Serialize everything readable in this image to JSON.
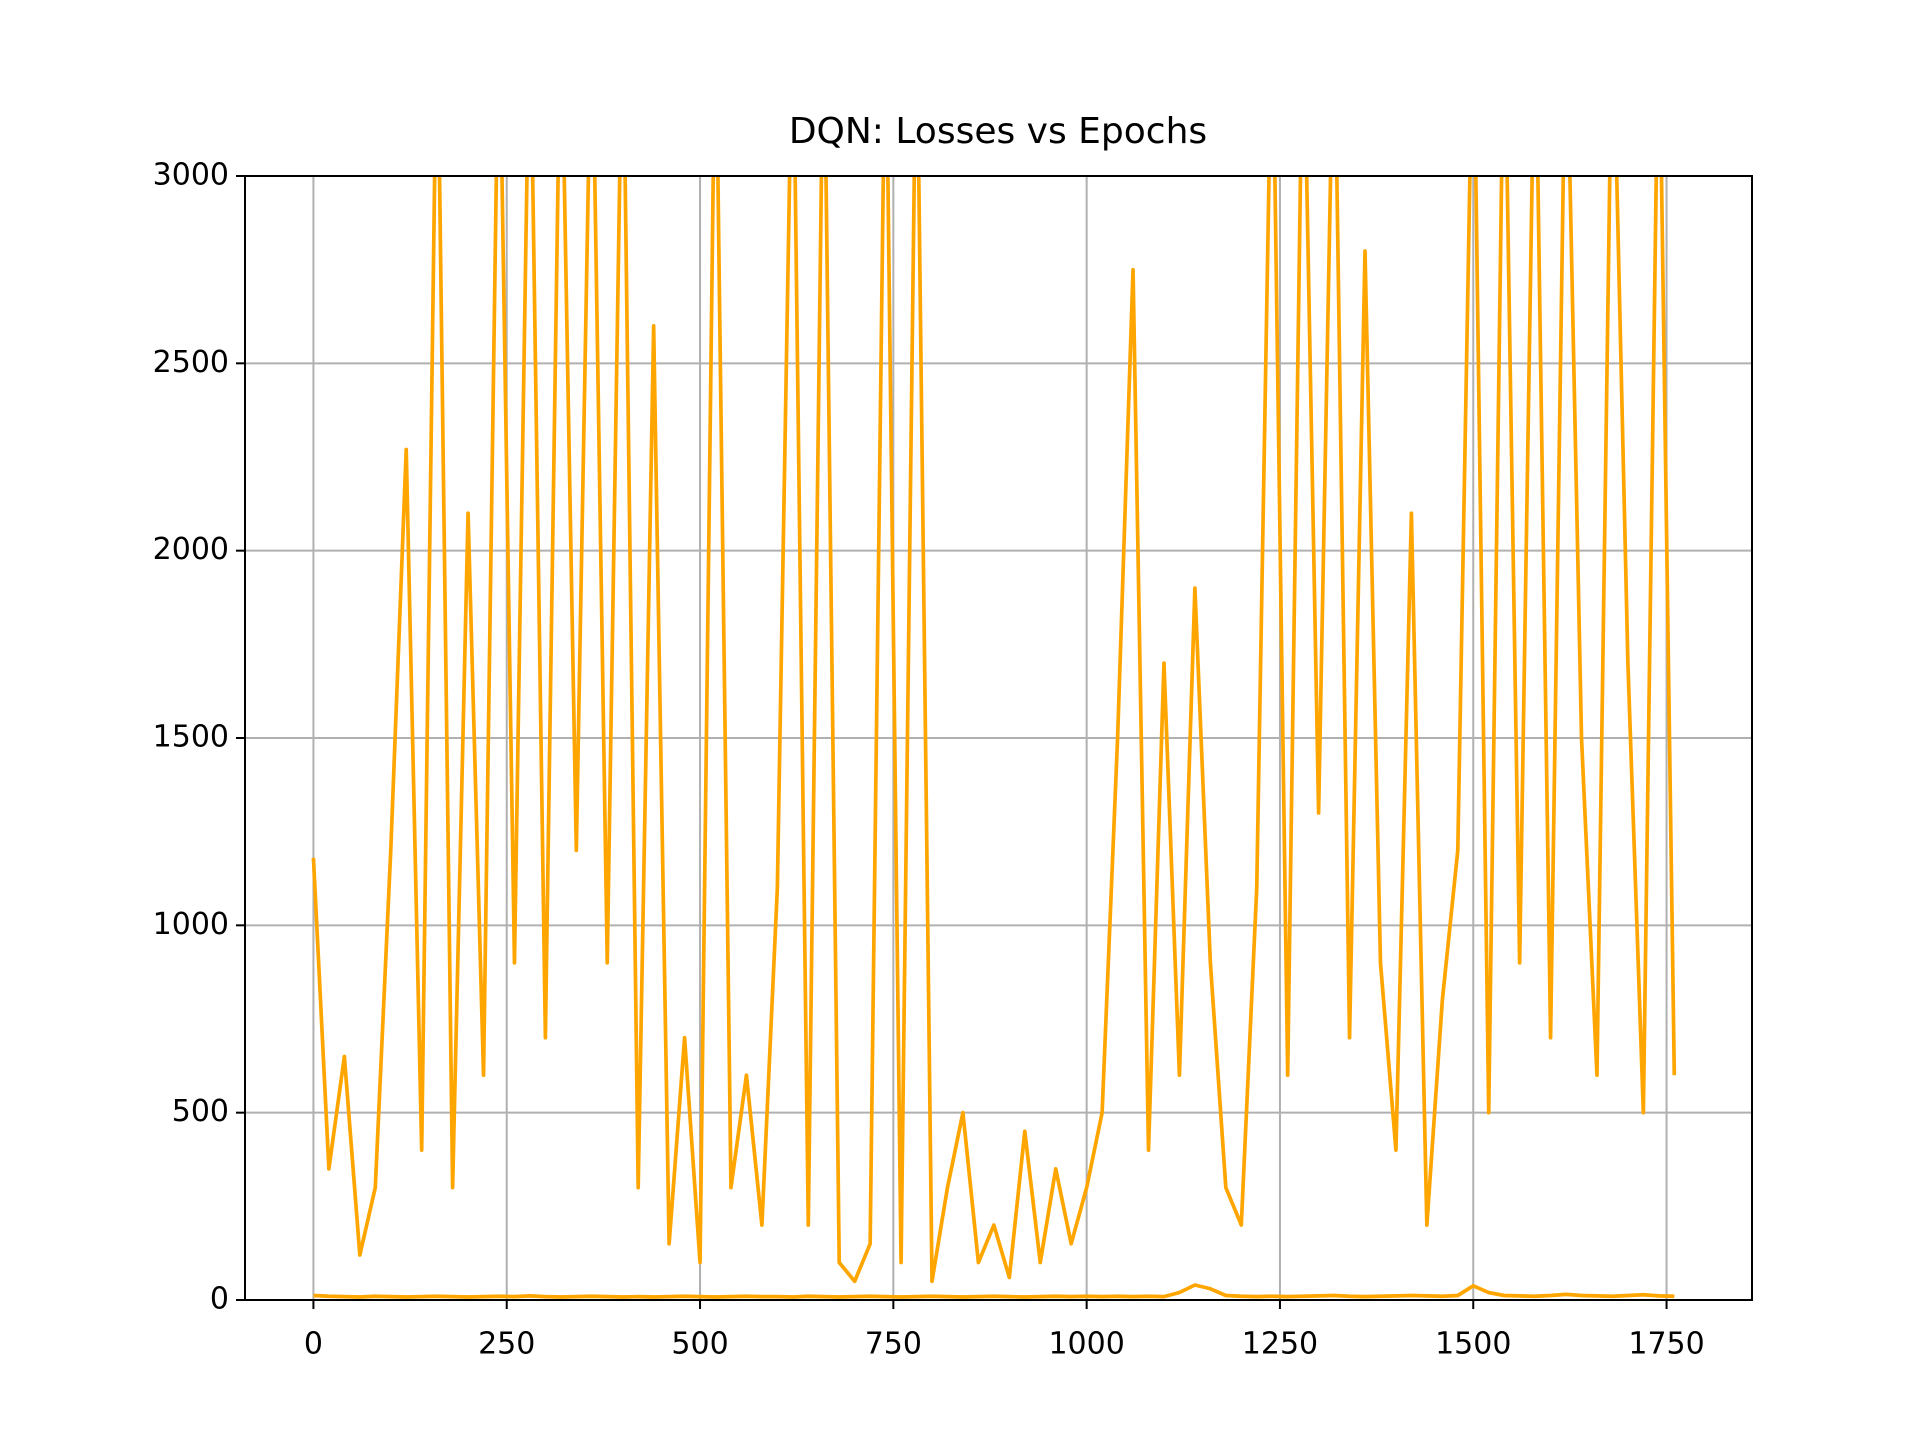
{
  "chart_data": {
    "type": "line",
    "title": "DQN: Losses vs Epochs",
    "x": [
      0,
      20,
      40,
      60,
      80,
      100,
      120,
      140,
      160,
      180,
      200,
      220,
      240,
      260,
      280,
      300,
      320,
      340,
      360,
      380,
      400,
      420,
      440,
      460,
      480,
      500,
      520,
      540,
      560,
      580,
      600,
      620,
      640,
      660,
      680,
      700,
      720,
      740,
      760,
      780,
      800,
      820,
      840,
      860,
      880,
      900,
      920,
      940,
      960,
      980,
      1000,
      1020,
      1040,
      1060,
      1080,
      1100,
      1120,
      1140,
      1160,
      1180,
      1200,
      1220,
      1240,
      1260,
      1280,
      1300,
      1320,
      1340,
      1360,
      1380,
      1400,
      1420,
      1440,
      1460,
      1480,
      1500,
      1520,
      1540,
      1560,
      1580,
      1600,
      1620,
      1640,
      1660,
      1680,
      1700,
      1720,
      1740,
      1760
    ],
    "series": [
      {
        "color": "#ffa500",
        "values": [
          1180,
          350,
          650,
          120,
          300,
          1200,
          2270,
          400,
          3500,
          300,
          2100,
          600,
          3500,
          900,
          3500,
          700,
          3500,
          1200,
          3500,
          900,
          3500,
          300,
          2600,
          150,
          700,
          100,
          3500,
          300,
          600,
          200,
          1100,
          3500,
          200,
          3500,
          100,
          50,
          150,
          3500,
          100,
          3500,
          50,
          300,
          500,
          100,
          200,
          60,
          450,
          100,
          350,
          150,
          300,
          500,
          1500,
          2750,
          400,
          1700,
          600,
          1900,
          900,
          300,
          200,
          1100,
          3500,
          600,
          3500,
          1300,
          3500,
          700,
          2800,
          900,
          400,
          2100,
          200,
          800,
          1200,
          3500,
          500,
          3500,
          900,
          3500,
          700,
          3500,
          1500,
          600,
          3500,
          1700,
          500,
          3500,
          600
        ]
      },
      {
        "color": "#ffa500",
        "values": [
          12,
          10,
          9,
          8,
          10,
          9,
          8,
          9,
          10,
          9,
          8,
          9,
          10,
          9,
          11,
          9,
          8,
          9,
          10,
          9,
          8,
          9,
          8,
          9,
          10,
          9,
          8,
          9,
          10,
          9,
          9,
          8,
          10,
          9,
          8,
          9,
          10,
          9,
          8,
          9,
          10,
          9,
          8,
          9,
          10,
          9,
          8,
          9,
          10,
          9,
          10,
          9,
          10,
          9,
          10,
          9,
          20,
          40,
          30,
          12,
          10,
          9,
          10,
          9,
          10,
          11,
          12,
          10,
          9,
          10,
          11,
          12,
          11,
          10,
          12,
          38,
          20,
          12,
          11,
          10,
          12,
          15,
          12,
          11,
          10,
          12,
          14,
          11,
          10
        ]
      }
    ],
    "xlim": [
      -88.5,
      1860.5
    ],
    "ylim": [
      0,
      3000
    ],
    "xticks": [
      0,
      250,
      500,
      750,
      1000,
      1250,
      1500,
      1750
    ],
    "yticks": [
      0,
      500,
      1000,
      1500,
      2000,
      2500,
      3000
    ],
    "grid": true
  }
}
